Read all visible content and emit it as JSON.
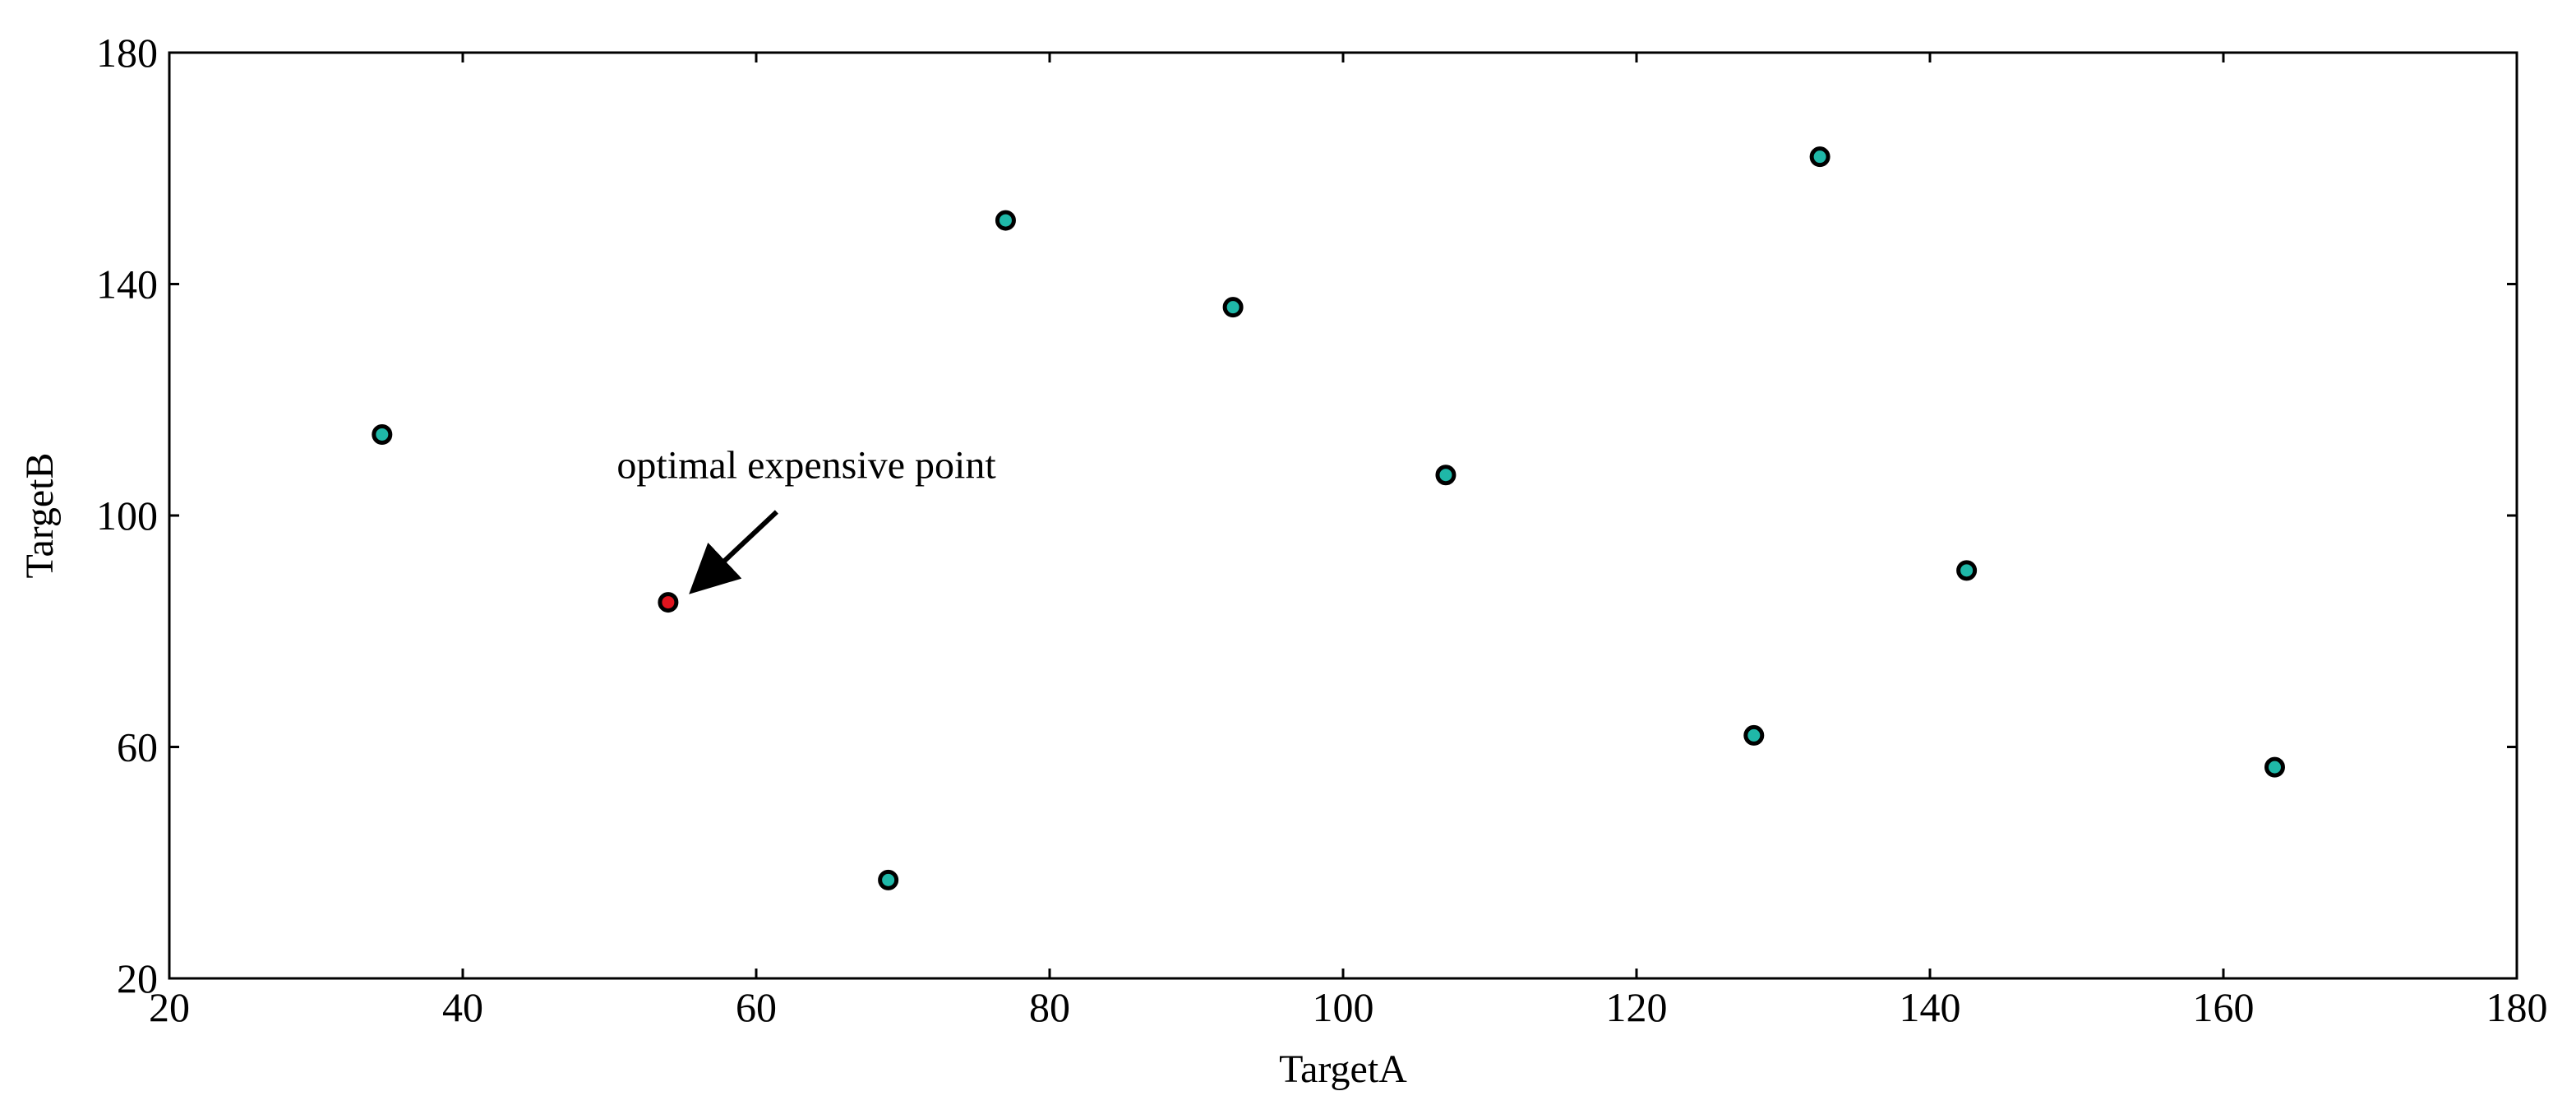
{
  "chart_data": {
    "type": "scatter",
    "title": "",
    "xlabel": "TargetA",
    "ylabel": "TargetB",
    "xlim": [
      20,
      180
    ],
    "ylim": [
      20,
      180
    ],
    "xticks": [
      20,
      40,
      60,
      80,
      100,
      120,
      140,
      160,
      180
    ],
    "yticks": [
      20,
      60,
      100,
      140,
      180
    ],
    "grid": false,
    "legend": "none",
    "colors": {
      "point_fill": "#1fb8a8",
      "highlight_fill": "#e0141e",
      "point_edge": "#000000",
      "axis": "#000000"
    },
    "points": [
      {
        "x": 34.5,
        "y": 114
      },
      {
        "x": 69,
        "y": 37
      },
      {
        "x": 77,
        "y": 151
      },
      {
        "x": 92.5,
        "y": 136
      },
      {
        "x": 107,
        "y": 107
      },
      {
        "x": 128,
        "y": 62
      },
      {
        "x": 132.5,
        "y": 162
      },
      {
        "x": 142.5,
        "y": 90.5
      },
      {
        "x": 163.5,
        "y": 56.5
      }
    ],
    "highlight_point": {
      "x": 54,
      "y": 85
    },
    "annotation": {
      "text": "optimal expensive point",
      "target": {
        "x": 54,
        "y": 85
      },
      "text_anchor": {
        "x": 50.5,
        "y": 106.5
      }
    }
  }
}
